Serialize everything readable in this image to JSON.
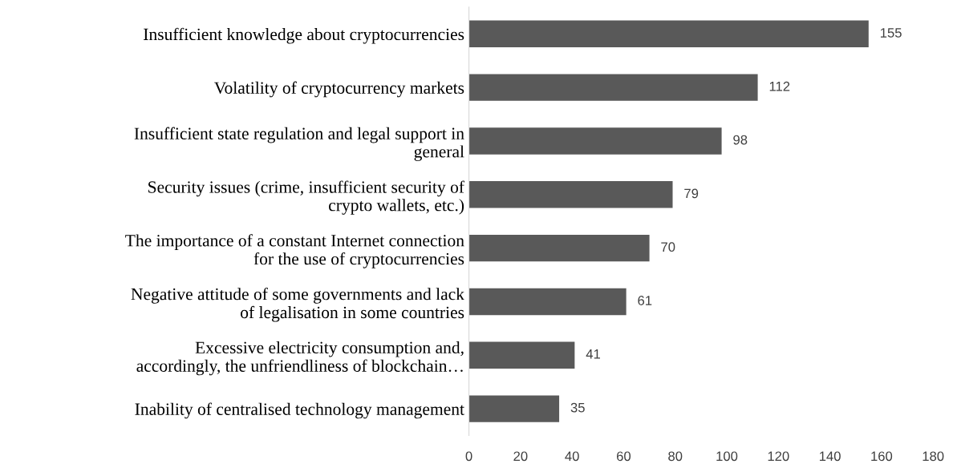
{
  "chart_data": {
    "type": "bar",
    "orientation": "horizontal",
    "categories": [
      "Insufficient knowledge about cryptocurrencies",
      "Volatility of cryptocurrency markets",
      "Insufficient state regulation and legal support in\ngeneral",
      "Security issues (crime, insufficient security of\ncrypto wallets, etc.)",
      "The importance of a constant Internet connection\nfor the use of cryptocurrencies",
      "Negative attitude of some governments and lack\nof legalisation in some countries",
      "Excessive electricity consumption and,\naccordingly, the unfriendliness of blockchain…",
      "Inability of centralised technology management"
    ],
    "values": [
      155,
      112,
      98,
      79,
      70,
      61,
      41,
      35
    ],
    "color": "#595959",
    "xlim": [
      0,
      180
    ],
    "xticks": [
      0,
      20,
      40,
      60,
      80,
      100,
      120,
      140,
      160,
      180
    ],
    "data_labels": true,
    "grid": false,
    "legend": false
  }
}
